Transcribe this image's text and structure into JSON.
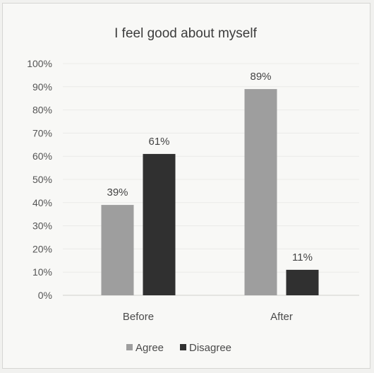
{
  "chart_data": {
    "type": "bar",
    "title": "I feel good about myself",
    "categories": [
      "Before",
      "After"
    ],
    "series": [
      {
        "name": "Agree",
        "values": [
          39,
          89
        ],
        "labels": [
          "39%",
          "89%"
        ],
        "color": "#9e9e9e"
      },
      {
        "name": "Disagree",
        "values": [
          61,
          11
        ],
        "labels": [
          "61%",
          "11%"
        ],
        "color": "#303030"
      }
    ],
    "ylim": [
      0,
      100
    ],
    "yticks": [
      "0%",
      "10%",
      "20%",
      "30%",
      "40%",
      "50%",
      "60%",
      "70%",
      "80%",
      "90%",
      "100%"
    ],
    "grid": true,
    "legend_position": "bottom"
  }
}
